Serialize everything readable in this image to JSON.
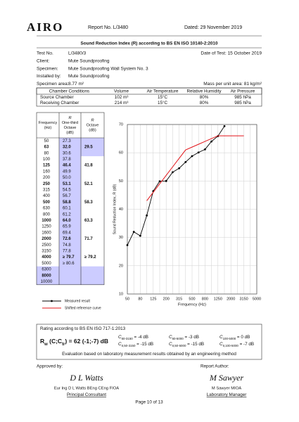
{
  "header": {
    "logo": "AIRO",
    "report_no": "Report No. L/3480",
    "dated": "Dated: 29 November 2019"
  },
  "title": "Sound Reduction Index (R) according to BS EN ISO 10140-2:2010",
  "info": [
    {
      "label": "Test No.",
      "value": "L/3480/3"
    },
    {
      "label": "Client:",
      "value": "Mute Soundproofing"
    },
    {
      "label": "Specimen:",
      "value": "Mute Soundproofing Wall System No. 3"
    },
    {
      "label": "Installed by:",
      "value": "Mute Soundproofing"
    },
    {
      "label": "Specimen area:",
      "value": "8.77 m²"
    }
  ],
  "date_of_test": "Date of Test: 15 October 2019",
  "mass": "Mass per unit area: 81 kg/m²",
  "conditions": {
    "headers": [
      "Chamber Conditions",
      "Volume",
      "Air Temperature",
      "Relative Humidity",
      "Air Pressure"
    ],
    "rows": [
      [
        "Source Chamber",
        "102 m³",
        "15°C",
        "80%",
        "985 hPa"
      ],
      [
        "Receiving Chamber",
        "214 m³",
        "15°C",
        "80%",
        "985 hPa"
      ]
    ]
  },
  "results": {
    "headers": [
      [
        "Frequency",
        "(Hz)"
      ],
      [
        "R",
        "One-third",
        "Octave",
        "(dB)"
      ],
      [
        "R",
        "Octave",
        "(dB)"
      ]
    ],
    "rows": [
      [
        "50",
        "27.3",
        null
      ],
      [
        "63",
        "32.0",
        "29.5"
      ],
      [
        "80",
        "30.6",
        null
      ],
      [
        "100",
        "37.8",
        null
      ],
      [
        "125",
        "46.4",
        "41.8"
      ],
      [
        "160",
        "49.9",
        null
      ],
      [
        "200",
        "50.0",
        null
      ],
      [
        "250",
        "53.1",
        "52.1"
      ],
      [
        "315",
        "54.5",
        null
      ],
      [
        "400",
        "56.7",
        null
      ],
      [
        "500",
        "58.8",
        "58.3"
      ],
      [
        "630",
        "60.1",
        null
      ],
      [
        "800",
        "61.2",
        null
      ],
      [
        "1000",
        "64.0",
        "63.3"
      ],
      [
        "1250",
        "65.9",
        null
      ],
      [
        "1600",
        "69.4",
        null
      ],
      [
        "2000",
        "72.6",
        "71.7"
      ],
      [
        "2500",
        "74.8",
        null
      ],
      [
        "3150",
        "77.8",
        null
      ],
      [
        "4000",
        "≥ 79.7",
        "≥ 79.2"
      ],
      [
        "5000",
        "≥ 80.6",
        null
      ],
      [
        "6300",
        null,
        null
      ],
      [
        "8000",
        null,
        null
      ],
      [
        "10000",
        null,
        null
      ]
    ]
  },
  "chart": {
    "type": "line",
    "x_label": "Frequency (Hz)",
    "y_label": "Sound Reduction Index, R (dB)",
    "categories": [
      "50",
      null,
      "80",
      null,
      "125",
      null,
      "200",
      null,
      "315",
      null,
      "500",
      null,
      "800",
      null,
      "1250",
      null,
      "2000",
      null,
      "3150",
      null,
      "5000"
    ],
    "series": [
      {
        "name": "Measured result",
        "color": "#000000",
        "marker": "circle",
        "values": [
          27.3,
          32.0,
          30.6,
          37.8,
          46.4,
          49.9,
          50.0,
          53.1,
          54.5,
          56.7,
          58.8,
          60.1,
          61.2,
          64.0,
          65.9,
          69.4,
          null,
          null,
          null,
          null,
          null
        ]
      },
      {
        "name": "Shifted reference curve",
        "color": "#e3151a",
        "values": [
          null,
          null,
          null,
          43,
          46,
          49,
          52,
          55,
          58,
          61,
          62,
          63,
          64,
          65,
          66,
          66,
          66,
          66,
          66,
          null,
          null
        ]
      }
    ],
    "ylim": [
      10,
      70
    ],
    "yticks": [
      10,
      20,
      30,
      40,
      50,
      60,
      70
    ],
    "grid": true
  },
  "rating": {
    "heading": "Rating according to BS EN ISO 717-1:2013",
    "rw": [
      {
        "text": "R"
      },
      {
        "sub": "w"
      },
      {
        "text": " (C;C"
      },
      {
        "sub": "tr"
      },
      {
        "text": ") = 62 (-1;-7) dB"
      }
    ],
    "terms": [
      [
        {
          "text": "C"
        },
        {
          "sub": "50-3150"
        },
        {
          "text": " = -4 dB"
        }
      ],
      [
        {
          "text": "C"
        },
        {
          "sub": "50-5000"
        },
        {
          "text": " = -3 dB"
        }
      ],
      [
        {
          "text": "C"
        },
        {
          "sub": "100-5000"
        },
        {
          "text": " = 0 dB"
        }
      ],
      [
        {
          "text": "C"
        },
        {
          "sub": "tr,50-3150"
        },
        {
          "text": " = -15 dB"
        }
      ],
      [
        {
          "text": "C"
        },
        {
          "sub": "tr,50-5000"
        },
        {
          "text": " = -15 dB"
        }
      ],
      [
        {
          "text": "C"
        },
        {
          "sub": "tr,100-5000"
        },
        {
          "text": " = -7 dB"
        }
      ]
    ],
    "note": "Evaluation based on laboratory measurement results obtained by an engineering method"
  },
  "approval": {
    "label": "Approved by:",
    "signature": "D L Watts",
    "name": "Eur Ing D L Watts BEng CEng FIOA",
    "role": "Principal Consultant"
  },
  "author": {
    "label": "Report Author:",
    "signature": "M Sawyer",
    "name": "M Sawyer MIOA",
    "role": "Laboratory Manager"
  },
  "footer": "Page 10 of 13"
}
